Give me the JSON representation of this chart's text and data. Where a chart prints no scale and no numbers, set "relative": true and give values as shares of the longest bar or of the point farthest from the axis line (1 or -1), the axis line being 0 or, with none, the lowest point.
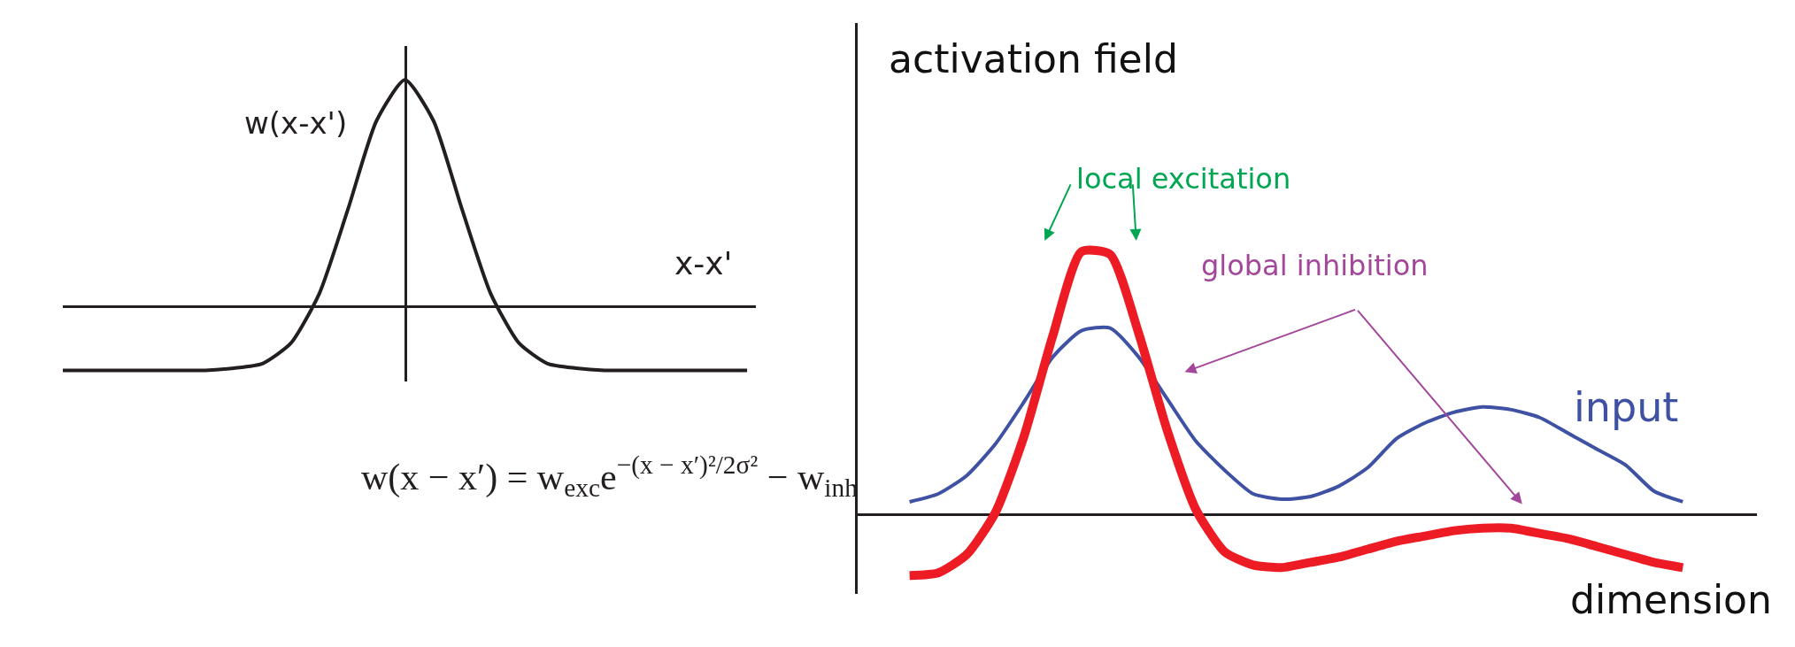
{
  "chart_data": [
    {
      "type": "line",
      "relative": true,
      "xlabel": "x-x'",
      "ylabel": "w(x-x')",
      "categories": [
        null,
        null,
        null,
        null,
        null,
        null,
        null,
        null,
        null,
        null,
        null,
        null,
        null,
        null,
        null,
        null,
        null,
        null,
        null,
        null,
        null,
        null,
        null,
        null,
        null
      ],
      "series": [
        {
          "color": "#231f20",
          "values": [
            -0.28,
            -0.28,
            -0.28,
            -0.28,
            -0.28,
            -0.28,
            -0.27,
            -0.25,
            -0.16,
            0.06,
            0.43,
            0.82,
            1,
            0.82,
            0.43,
            0.06,
            -0.16,
            -0.25,
            -0.27,
            -0.28,
            -0.28,
            -0.28,
            -0.28,
            -0.28,
            -0.28
          ]
        }
      ],
      "annotations": [
        "w(x − x′) = w$_{exc}$e$^{−(x − x′)²/2σ²}$ − w$_{inh}$"
      ]
    },
    {
      "type": "line",
      "relative": true,
      "xlabel": "dimension",
      "ylabel": "activation field",
      "categories": [
        null,
        null,
        null,
        null,
        null,
        null,
        null,
        null,
        null,
        null,
        null,
        null,
        null,
        null,
        null,
        null,
        null,
        null,
        null,
        null,
        null,
        null,
        null,
        null,
        null,
        null,
        null,
        null
      ],
      "series": [
        {
          "name": "input",
          "color": "#3f51a3",
          "values": [
            0.05,
            0.08,
            0.15,
            0.27,
            0.43,
            0.6,
            0.7,
            0.71,
            0.6,
            0.44,
            0.28,
            0.17,
            0.08,
            0.06,
            0.07,
            0.11,
            0.18,
            0.29,
            0.35,
            0.39,
            0.41,
            0.4,
            0.37,
            0.31,
            0.25,
            0.19,
            0.09,
            0.05
          ]
        },
        {
          "color": "#ed1c24",
          "values": [
            -0.23,
            -0.22,
            -0.15,
            0.01,
            0.3,
            0.68,
            1,
            0.99,
            0.69,
            0.32,
            0.02,
            -0.14,
            -0.19,
            -0.2,
            -0.18,
            -0.16,
            -0.13,
            -0.1,
            -0.08,
            -0.06,
            -0.05,
            -0.05,
            -0.07,
            -0.09,
            -0.12,
            -0.15,
            -0.18,
            -0.2
          ]
        }
      ],
      "annotations": [
        "local excitation",
        "global inhibition"
      ]
    }
  ]
}
